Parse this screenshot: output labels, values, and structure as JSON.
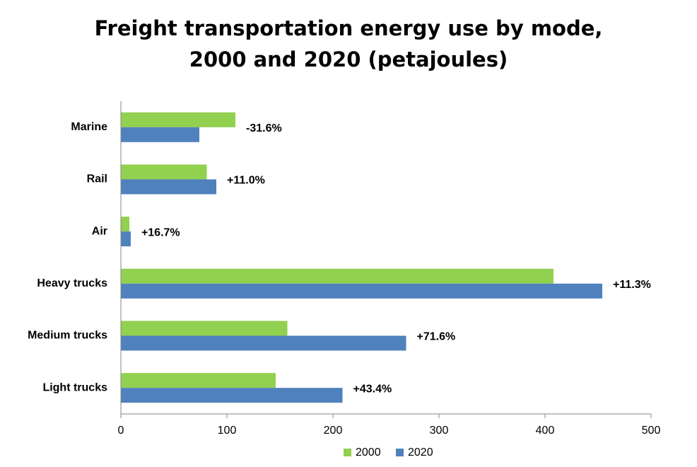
{
  "chart_data": {
    "type": "bar",
    "orientation": "horizontal",
    "title": "Freight transportation energy use by mode, 2000 and 2020 (petajoules)",
    "categories": [
      "Marine",
      "Rail",
      "Air",
      "Heavy trucks",
      "Medium trucks",
      "Light trucks"
    ],
    "series": [
      {
        "name": "2000",
        "color": "#92d050",
        "values": [
          108,
          81,
          8,
          408,
          157,
          146
        ]
      },
      {
        "name": "2020",
        "color": "#4f81bd",
        "values": [
          74,
          90,
          9.3,
          454,
          269,
          209
        ]
      }
    ],
    "annotations": [
      "-31.6%",
      "+11.0%",
      "+16.7%",
      "+11.3%",
      "+71.6%",
      "+43.4%"
    ],
    "xlim": [
      0,
      500
    ],
    "xticks": [
      0,
      100,
      200,
      300,
      400,
      500
    ],
    "grid": false,
    "legend": "bottom"
  }
}
